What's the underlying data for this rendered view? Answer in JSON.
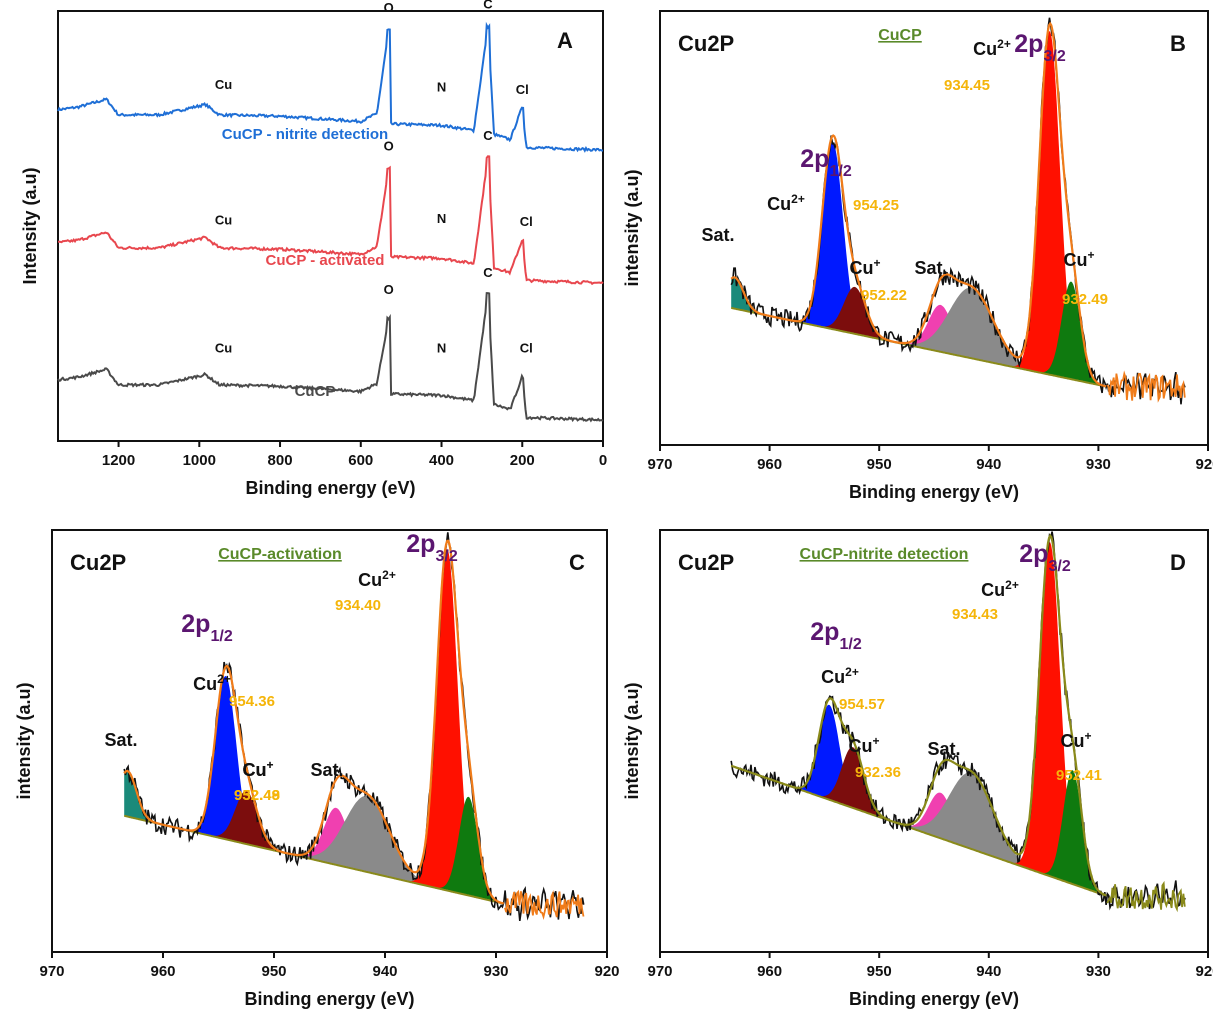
{
  "chart_data": [
    {
      "panel": "A",
      "type": "line",
      "xlabel": "Binding energy (eV)",
      "ylabel": "Intensity (a.u)",
      "xlim": [
        1350,
        0
      ],
      "xticks": [
        "1200",
        "1000",
        "800",
        "600",
        "400",
        "200",
        "0"
      ],
      "series": [
        {
          "name": "CuCP - nitrite detection",
          "color": "#1f6fd6",
          "points": [
            [
              1350,
              0.31
            ],
            [
              1300,
              0.33
            ],
            [
              1230,
              0.39
            ],
            [
              1200,
              0.27
            ],
            [
              1100,
              0.27
            ],
            [
              1070,
              0.29
            ],
            [
              985,
              0.35
            ],
            [
              950,
              0.27
            ],
            [
              800,
              0.26
            ],
            [
              600,
              0.22
            ],
            [
              560,
              0.28
            ],
            [
              531,
              0.92
            ],
            [
              525,
              0.2
            ],
            [
              400,
              0.19
            ],
            [
              320,
              0.15
            ],
            [
              285,
              0.95
            ],
            [
              270,
              0.12
            ],
            [
              230,
              0.08
            ],
            [
              200,
              0.33
            ],
            [
              190,
              0.02
            ],
            [
              0,
              0.0
            ]
          ],
          "labels": [
            {
              "text": "Cu",
              "x": 940,
              "y": 0.47
            },
            {
              "text": "O",
              "x": 531,
              "y": 1.06
            },
            {
              "text": "N",
              "x": 400,
              "y": 0.45
            },
            {
              "text": "C",
              "x": 285,
              "y": 1.09
            },
            {
              "text": "Cl",
              "x": 200,
              "y": 0.43
            }
          ]
        },
        {
          "name": "CuCP - activated",
          "color": "#e8474e",
          "points": [
            [
              1350,
              0.31
            ],
            [
              1300,
              0.33
            ],
            [
              1230,
              0.39
            ],
            [
              1200,
              0.27
            ],
            [
              1100,
              0.27
            ],
            [
              1070,
              0.29
            ],
            [
              985,
              0.35
            ],
            [
              950,
              0.27
            ],
            [
              800,
              0.26
            ],
            [
              600,
              0.22
            ],
            [
              560,
              0.28
            ],
            [
              531,
              0.88
            ],
            [
              525,
              0.2
            ],
            [
              400,
              0.19
            ],
            [
              320,
              0.15
            ],
            [
              285,
              0.97
            ],
            [
              270,
              0.12
            ],
            [
              230,
              0.08
            ],
            [
              200,
              0.33
            ],
            [
              190,
              0.02
            ],
            [
              0,
              0.0
            ]
          ],
          "labels": [
            {
              "text": "Cu",
              "x": 940,
              "y": 0.45
            },
            {
              "text": "O",
              "x": 531,
              "y": 1.02
            },
            {
              "text": "N",
              "x": 400,
              "y": 0.46
            },
            {
              "text": "C",
              "x": 285,
              "y": 1.1
            },
            {
              "text": "Cl",
              "x": 190,
              "y": 0.44
            }
          ]
        },
        {
          "name": "CuCP",
          "color": "#4a4a4a",
          "points": [
            [
              1350,
              0.31
            ],
            [
              1300,
              0.33
            ],
            [
              1230,
              0.39
            ],
            [
              1200,
              0.27
            ],
            [
              1100,
              0.27
            ],
            [
              1070,
              0.29
            ],
            [
              985,
              0.35
            ],
            [
              950,
              0.27
            ],
            [
              800,
              0.26
            ],
            [
              600,
              0.22
            ],
            [
              560,
              0.28
            ],
            [
              531,
              0.78
            ],
            [
              525,
              0.2
            ],
            [
              400,
              0.19
            ],
            [
              320,
              0.15
            ],
            [
              285,
              0.97
            ],
            [
              270,
              0.12
            ],
            [
              230,
              0.08
            ],
            [
              200,
              0.33
            ],
            [
              190,
              0.02
            ],
            [
              0,
              0.0
            ]
          ],
          "labels": [
            {
              "text": "Cu",
              "x": 940,
              "y": 0.52
            },
            {
              "text": "O",
              "x": 531,
              "y": 0.97
            },
            {
              "text": "N",
              "x": 400,
              "y": 0.52
            },
            {
              "text": "C",
              "x": 285,
              "y": 1.1
            },
            {
              "text": "Cl",
              "x": 190,
              "y": 0.52
            }
          ]
        }
      ]
    },
    {
      "panel": "B",
      "type": "line",
      "title": "Cu2P",
      "sample": "CuCP",
      "xlabel": "Binding energy (eV)",
      "ylabel": "intensity (a.u)",
      "xlim": [
        970,
        920
      ],
      "xticks": [
        "970",
        "960",
        "950",
        "940",
        "930",
        "920"
      ],
      "annotations": {
        "orbital_high": "2p3/2",
        "orbital_low": "2p1/2",
        "sat_left": "Sat.",
        "sat_mid": "Sat.",
        "cu2_high": "934.45",
        "cu2_low": "954.25",
        "cu1_high": "932.49",
        "cu1_low": "952.22"
      }
    },
    {
      "panel": "C",
      "type": "line",
      "title": "Cu2P",
      "sample": "CuCP-activation",
      "xlabel": "Binding energy (eV)",
      "ylabel": "intensity (a.u)",
      "xlim": [
        970,
        920
      ],
      "xticks": [
        "970",
        "960",
        "950",
        "940",
        "930",
        "920"
      ],
      "annotations": {
        "orbital_high": "2p3/2",
        "orbital_low": "2p1/2",
        "sat_left": "Sat.",
        "sat_mid": "Sat.",
        "cu2_high": "934.40",
        "cu2_low": "954.36",
        "cu1_high": "932.48",
        "cu1_low": "952.49"
      }
    },
    {
      "panel": "D",
      "type": "line",
      "title": "Cu2P",
      "sample": "CuCP-nitrite detection",
      "xlabel": "Binding energy (eV)",
      "ylabel": "intensity (a.u)",
      "xlim": [
        970,
        920
      ],
      "xticks": [
        "970",
        "960",
        "950",
        "940",
        "930",
        "920"
      ],
      "annotations": {
        "orbital_high": "2p3/2",
        "orbital_low": "2p1/2",
        "sat_mid": "Sat.",
        "cu2_high": "934.43",
        "cu2_low": "954.57",
        "cu1_high": "932.36",
        "cu1_low": "952.41"
      }
    }
  ],
  "text": {
    "letter_a": "A",
    "letter_b": "B",
    "letter_c": "C",
    "letter_d": "D",
    "cu2": "Cu",
    "cu1": "Cu",
    "sup2": "2+",
    "sup1": "+",
    "orb": "2p",
    "sub_high": "3/2",
    "sub_low": "1/2"
  },
  "colors": {
    "blue_peak": "#0019ff",
    "red_peak": "#ff1000",
    "green_peak": "#0f7a0f",
    "darkred_peak": "#7c0d0d",
    "pink_peak": "#f040b0",
    "gray_peak": "#8a8a8a",
    "teal_peak": "#1a8a7a",
    "envelope": "#f07c1a",
    "baseline": "#8a8a1a"
  }
}
